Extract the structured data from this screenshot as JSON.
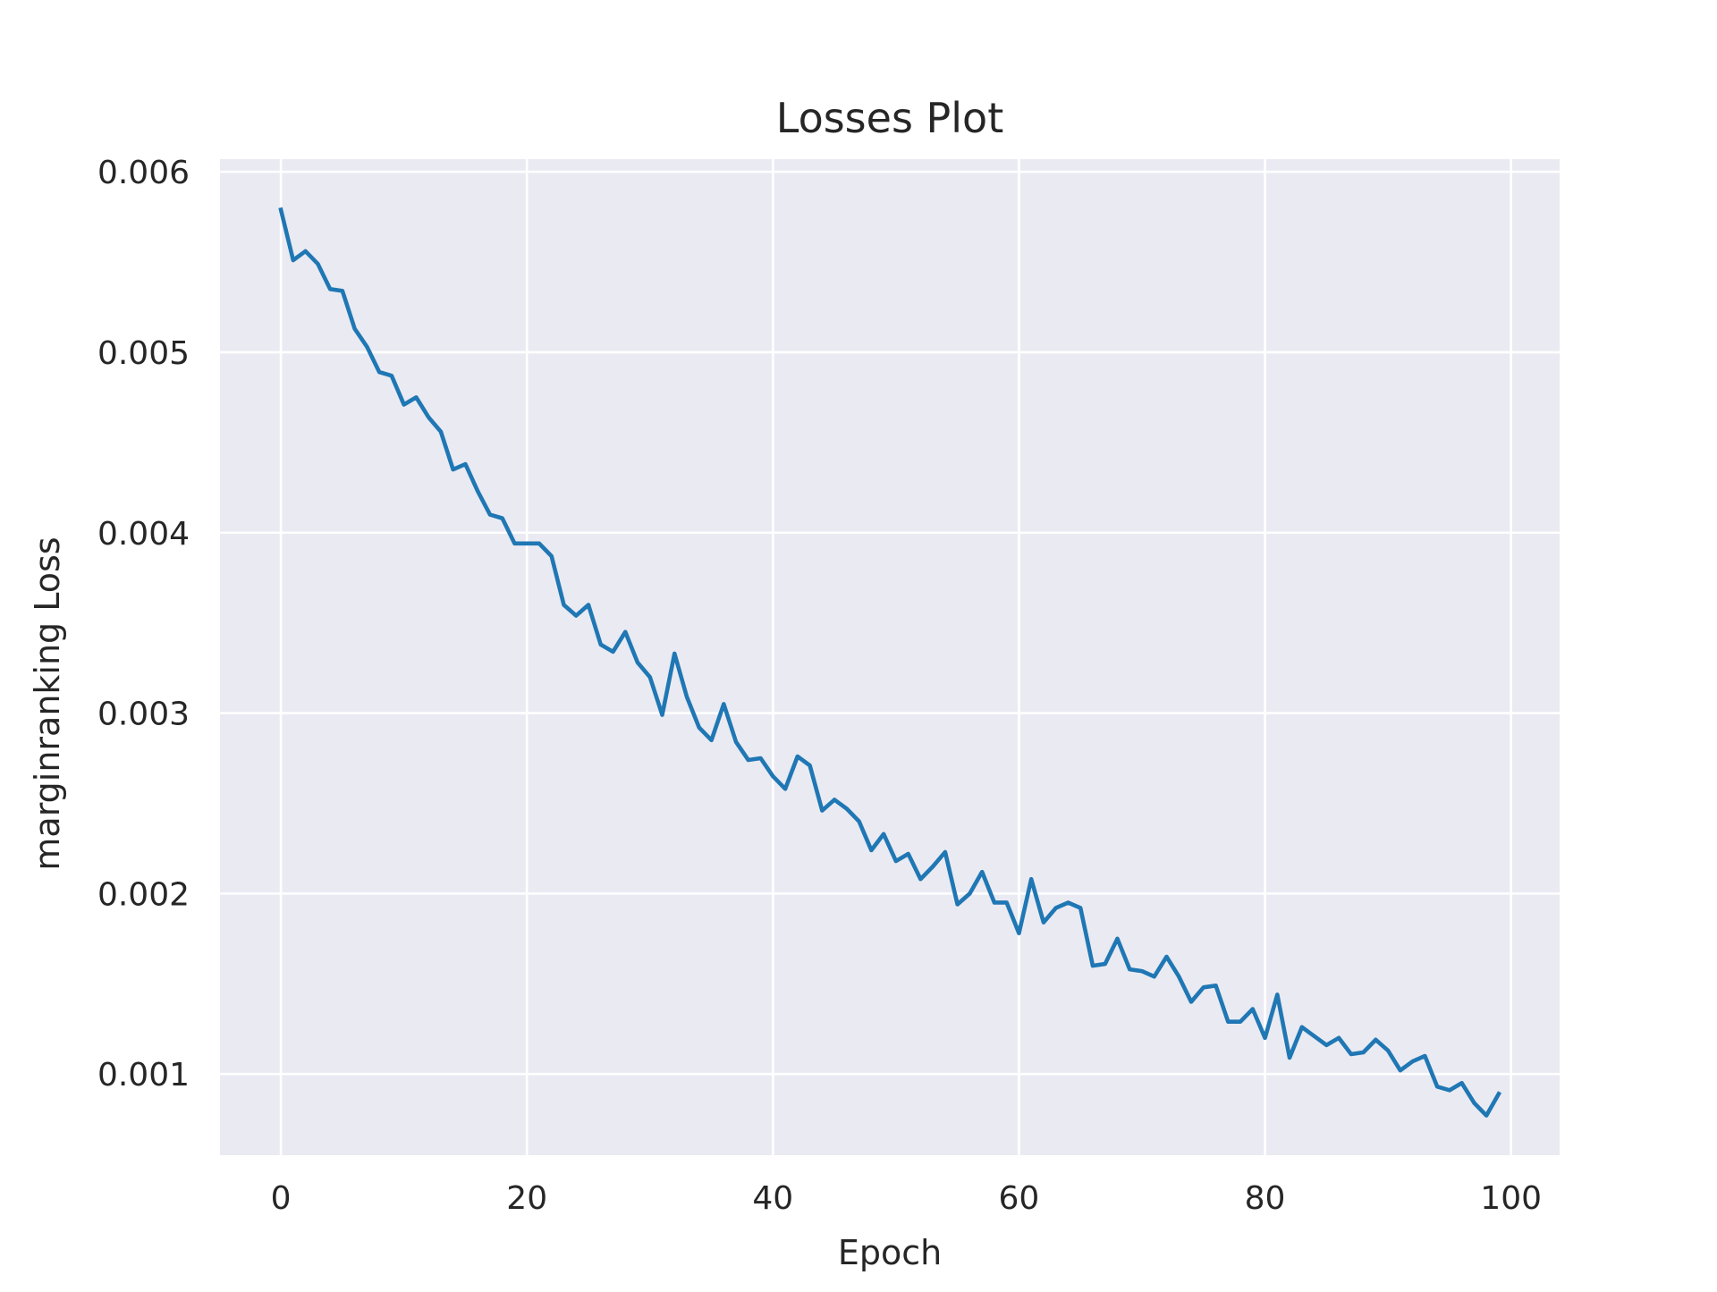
{
  "chart_data": {
    "type": "line",
    "title": "Losses Plot",
    "xlabel": "Epoch",
    "ylabel": "marginranking Loss",
    "xlim": [
      -4.95,
      103.95
    ],
    "ylim": [
      0.00055,
      0.00607
    ],
    "xticks": [
      0,
      20,
      40,
      60,
      80,
      100
    ],
    "xtick_labels": [
      "0",
      "20",
      "40",
      "60",
      "80",
      "100"
    ],
    "yticks": [
      0.001,
      0.002,
      0.003,
      0.004,
      0.005,
      0.006
    ],
    "ytick_labels": [
      "0.001",
      "0.002",
      "0.003",
      "0.004",
      "0.005",
      "0.006"
    ],
    "grid": true,
    "background": "#eaeaf2",
    "line_color": "#1f77b4",
    "series": [
      {
        "x": [
          0,
          1,
          2,
          3,
          4,
          5,
          6,
          7,
          8,
          9,
          10,
          11,
          12,
          13,
          14,
          15,
          16,
          17,
          18,
          19,
          20,
          21,
          22,
          23,
          24,
          25,
          26,
          27,
          28,
          29,
          30,
          31,
          32,
          33,
          34,
          35,
          36,
          37,
          38,
          39,
          40,
          41,
          42,
          43,
          44,
          45,
          46,
          47,
          48,
          49,
          50,
          51,
          52,
          53,
          54,
          55,
          56,
          57,
          58,
          59,
          60,
          61,
          62,
          63,
          64,
          65,
          66,
          67,
          68,
          69,
          70,
          71,
          72,
          73,
          74,
          75,
          76,
          77,
          78,
          79,
          80,
          81,
          82,
          83,
          84,
          85,
          86,
          87,
          88,
          89,
          90,
          91,
          92,
          93,
          94,
          95,
          96,
          97,
          98,
          99
        ],
        "values": [
          0.00579,
          0.00551,
          0.00556,
          0.00549,
          0.00535,
          0.00534,
          0.00513,
          0.00503,
          0.00489,
          0.00487,
          0.00471,
          0.00475,
          0.00464,
          0.00456,
          0.00435,
          0.00438,
          0.00423,
          0.0041,
          0.00408,
          0.00394,
          0.00394,
          0.00394,
          0.00387,
          0.0036,
          0.00354,
          0.0036,
          0.00338,
          0.00334,
          0.00345,
          0.00328,
          0.0032,
          0.00299,
          0.00333,
          0.00309,
          0.00292,
          0.00285,
          0.00305,
          0.00284,
          0.00274,
          0.00275,
          0.00265,
          0.00258,
          0.00276,
          0.00271,
          0.00246,
          0.00252,
          0.00247,
          0.0024,
          0.00224,
          0.00233,
          0.00218,
          0.00222,
          0.00208,
          0.00215,
          0.00223,
          0.00194,
          0.002,
          0.00212,
          0.00195,
          0.00195,
          0.00178,
          0.00208,
          0.00184,
          0.00192,
          0.00195,
          0.00192,
          0.0016,
          0.00161,
          0.00175,
          0.00158,
          0.00157,
          0.00154,
          0.00165,
          0.00154,
          0.0014,
          0.00148,
          0.00149,
          0.00129,
          0.00129,
          0.00136,
          0.0012,
          0.00144,
          0.00109,
          0.00126,
          0.00121,
          0.00116,
          0.0012,
          0.00111,
          0.00112,
          0.00119,
          0.00113,
          0.00102,
          0.00107,
          0.0011,
          0.00093,
          0.00091,
          0.00095,
          0.00084,
          0.00077,
          0.00089
        ]
      }
    ]
  }
}
